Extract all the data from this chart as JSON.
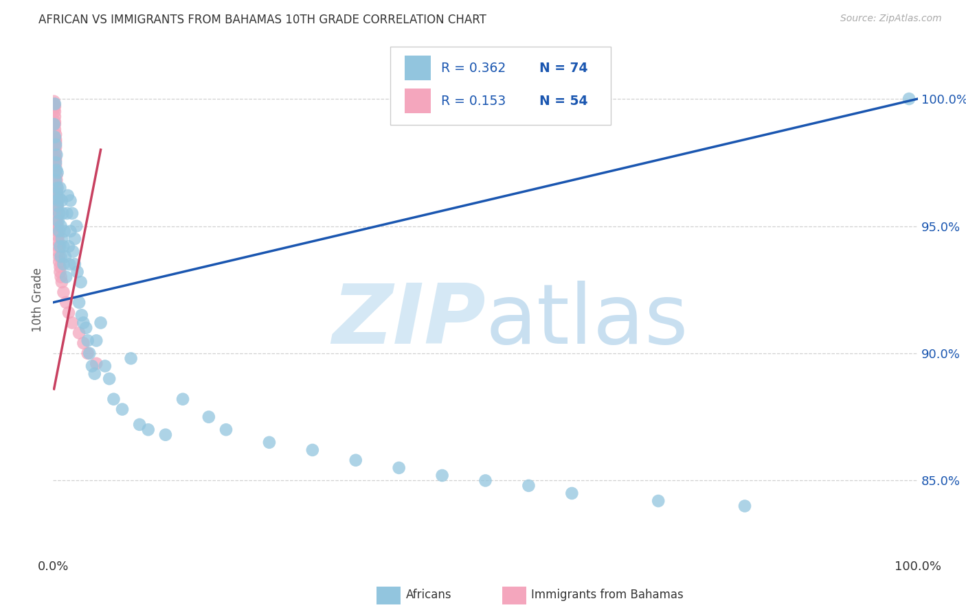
{
  "title": "AFRICAN VS IMMIGRANTS FROM BAHAMAS 10TH GRADE CORRELATION CHART",
  "source": "Source: ZipAtlas.com",
  "ylabel": "10th Grade",
  "watermark_zip": "ZIP",
  "watermark_atlas": "atlas",
  "blue_color": "#92c5de",
  "pink_color": "#f4a6bd",
  "line_blue": "#1a56b0",
  "line_pink": "#c84060",
  "legend_r1": "R = 0.362",
  "legend_n1": "N = 74",
  "legend_r2": "R = 0.153",
  "legend_n2": "N = 54",
  "africans_x": [
    0.001,
    0.002,
    0.002,
    0.003,
    0.003,
    0.003,
    0.004,
    0.004,
    0.004,
    0.005,
    0.005,
    0.005,
    0.006,
    0.006,
    0.007,
    0.007,
    0.007,
    0.008,
    0.008,
    0.009,
    0.009,
    0.01,
    0.01,
    0.011,
    0.012,
    0.012,
    0.013,
    0.014,
    0.015,
    0.016,
    0.017,
    0.018,
    0.019,
    0.02,
    0.02,
    0.022,
    0.023,
    0.025,
    0.025,
    0.027,
    0.028,
    0.03,
    0.032,
    0.033,
    0.035,
    0.038,
    0.04,
    0.042,
    0.045,
    0.048,
    0.05,
    0.055,
    0.06,
    0.065,
    0.07,
    0.08,
    0.09,
    0.1,
    0.11,
    0.13,
    0.15,
    0.18,
    0.2,
    0.25,
    0.3,
    0.35,
    0.4,
    0.45,
    0.5,
    0.55,
    0.6,
    0.7,
    0.8,
    0.99
  ],
  "africans_y": [
    0.99,
    0.985,
    0.998,
    0.975,
    0.982,
    0.968,
    0.972,
    0.963,
    0.978,
    0.965,
    0.958,
    0.971,
    0.96,
    0.952,
    0.955,
    0.948,
    0.961,
    0.942,
    0.965,
    0.938,
    0.95,
    0.96,
    0.945,
    0.955,
    0.935,
    0.942,
    0.948,
    0.938,
    0.93,
    0.955,
    0.962,
    0.942,
    0.935,
    0.96,
    0.948,
    0.955,
    0.94,
    0.935,
    0.945,
    0.95,
    0.932,
    0.92,
    0.928,
    0.915,
    0.912,
    0.91,
    0.905,
    0.9,
    0.895,
    0.892,
    0.905,
    0.912,
    0.895,
    0.89,
    0.882,
    0.878,
    0.898,
    0.872,
    0.87,
    0.868,
    0.882,
    0.875,
    0.87,
    0.865,
    0.862,
    0.858,
    0.855,
    0.852,
    0.85,
    0.848,
    0.845,
    0.842,
    0.84,
    1.0
  ],
  "bahamas_x": [
    0.001,
    0.001,
    0.001,
    0.001,
    0.002,
    0.002,
    0.002,
    0.002,
    0.002,
    0.002,
    0.003,
    0.003,
    0.003,
    0.003,
    0.003,
    0.003,
    0.003,
    0.003,
    0.003,
    0.004,
    0.004,
    0.004,
    0.004,
    0.004,
    0.004,
    0.004,
    0.004,
    0.004,
    0.004,
    0.004,
    0.004,
    0.005,
    0.005,
    0.005,
    0.005,
    0.005,
    0.006,
    0.006,
    0.006,
    0.006,
    0.007,
    0.007,
    0.008,
    0.008,
    0.009,
    0.01,
    0.012,
    0.015,
    0.018,
    0.022,
    0.03,
    0.035,
    0.04,
    0.05
  ],
  "bahamas_y": [
    0.999,
    0.998,
    0.997,
    0.996,
    0.997,
    0.995,
    0.993,
    0.991,
    0.99,
    0.988,
    0.986,
    0.984,
    0.983,
    0.981,
    0.979,
    0.977,
    0.976,
    0.974,
    0.972,
    0.97,
    0.968,
    0.966,
    0.964,
    0.963,
    0.961,
    0.959,
    0.957,
    0.955,
    0.953,
    0.952,
    0.95,
    0.958,
    0.956,
    0.954,
    0.95,
    0.948,
    0.946,
    0.944,
    0.942,
    0.94,
    0.938,
    0.936,
    0.934,
    0.932,
    0.93,
    0.928,
    0.924,
    0.92,
    0.916,
    0.912,
    0.908,
    0.904,
    0.9,
    0.896
  ],
  "blue_line_x0": 0.0,
  "blue_line_y0": 0.92,
  "blue_line_x1": 1.0,
  "blue_line_y1": 1.0,
  "pink_line_x0": 0.001,
  "pink_line_y0": 0.886,
  "pink_line_x1": 0.055,
  "pink_line_y1": 0.98,
  "xlim_min": 0.0,
  "xlim_max": 1.0,
  "ylim_min": 0.82,
  "ylim_max": 1.022,
  "yticks": [
    0.85,
    0.9,
    0.95,
    1.0
  ],
  "ytick_labels": [
    "85.0%",
    "90.0%",
    "95.0%",
    "100.0%"
  ],
  "bg_color": "#ffffff",
  "grid_color": "#d0d0d0",
  "title_color": "#333333",
  "source_color": "#aaaaaa",
  "watermark_color": "#d5e8f5"
}
